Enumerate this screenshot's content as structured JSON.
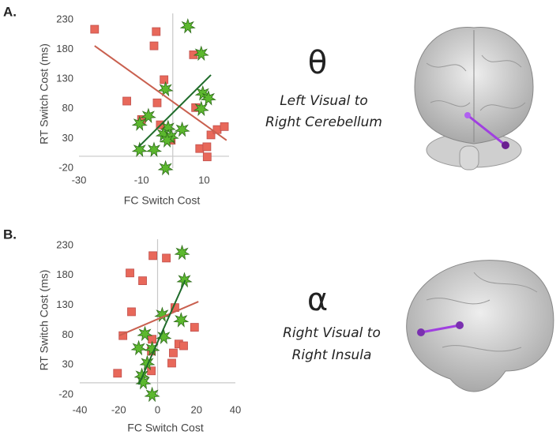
{
  "panels": [
    {
      "label": "A.",
      "symbol": "θ",
      "annotation": [
        "Left Visual to",
        "Right Cerebellum"
      ]
    },
    {
      "label": "B.",
      "symbol": "α",
      "annotation": [
        "Right Visual to",
        "Right Insula"
      ]
    }
  ],
  "chart_data": [
    {
      "type": "scatter",
      "xlabel": "FC Switch Cost",
      "ylabel": "RT Switch Cost (ms)",
      "xlim": [
        -30,
        18
      ],
      "ylim": [
        -20,
        230
      ],
      "xticks": [
        -30,
        -10,
        10
      ],
      "yticks": [
        -20,
        30,
        80,
        130,
        180,
        230
      ],
      "series": [
        {
          "color": "#e8685a",
          "marker": "square",
          "x": [
            -25,
            -5.3,
            -6,
            -2.8,
            -14.7,
            -5,
            -10,
            -4,
            -0.5,
            6.6,
            7.3,
            8.6,
            10.9,
            11,
            12.2,
            14.2,
            16.5
          ],
          "y": [
            214,
            210,
            186,
            129,
            93,
            90,
            62,
            53,
            27,
            171,
            82,
            13,
            16,
            -1,
            36,
            45,
            50
          ]
        },
        {
          "color": "#5cb82e",
          "marker": "leaf",
          "x": [
            4.8,
            9.1,
            -2.3,
            9.6,
            11.4,
            9.1,
            -7.8,
            -10.6,
            -1.5,
            3,
            -3,
            -0.5,
            -1.8,
            -10.6,
            -6,
            -2.3
          ],
          "y": [
            219,
            173,
            113,
            106,
            98,
            80,
            68,
            55,
            48,
            45,
            37,
            33,
            27,
            11,
            11,
            -20
          ]
        }
      ],
      "fit_lines": [
        {
          "color": "#c9604f",
          "x": [
            -25,
            17.2
          ],
          "y": [
            186,
            27
          ]
        },
        {
          "color": "#1e6b2a",
          "x": [
            -10.9,
            12.2
          ],
          "y": [
            16,
            137
          ]
        }
      ]
    },
    {
      "type": "scatter",
      "xlabel": "FC Switch Cost",
      "ylabel": "RT Switch Cost (ms)",
      "xlim": [
        -40,
        40
      ],
      "ylim": [
        -20,
        230
      ],
      "xticks": [
        -40,
        -20,
        0,
        20,
        40
      ],
      "yticks": [
        -20,
        30,
        80,
        130,
        180,
        230
      ],
      "series": [
        {
          "color": "#e8685a",
          "marker": "square",
          "x": [
            -2.4,
            4.5,
            -14.2,
            -7.7,
            -13.4,
            8.9,
            -17.8,
            -2.8,
            10.9,
            13.4,
            19,
            -3.2,
            8.1,
            7.3,
            -20.6,
            -3.2
          ],
          "y": [
            213,
            209,
            184,
            171,
            119,
            126,
            79,
            73,
            65,
            62,
            93,
            53,
            50,
            33,
            16,
            20
          ]
        },
        {
          "color": "#5cb82e",
          "marker": "leaf",
          "x": [
            12.6,
            13.8,
            2.4,
            12.1,
            -6.5,
            3.2,
            -9.7,
            -2.8,
            -5.3,
            -8.1,
            -7.3,
            -2.8
          ],
          "y": [
            218,
            172,
            114,
            105,
            82,
            77,
            58,
            57,
            33,
            12,
            1,
            -20
          ]
        }
      ],
      "fit_lines": [
        {
          "color": "#c9604f",
          "x": [
            -19.8,
            21
          ],
          "y": [
            79,
            136
          ]
        },
        {
          "color": "#1e6b2a",
          "x": [
            -9.7,
            14.2
          ],
          "y": [
            -3,
            172
          ]
        }
      ]
    }
  ]
}
